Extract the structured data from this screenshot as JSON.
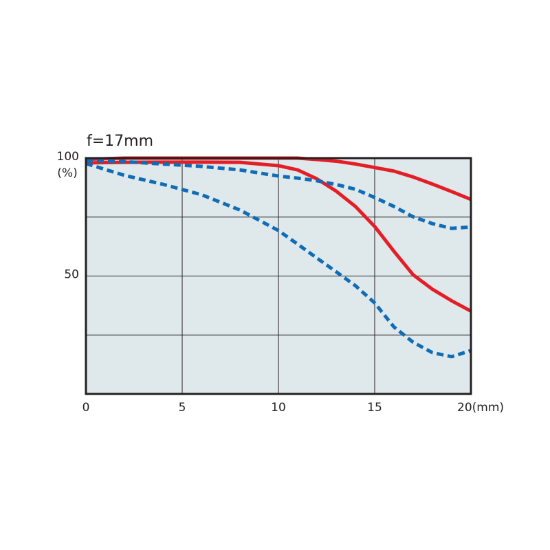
{
  "chart_data": {
    "type": "line",
    "title": "f=17mm",
    "ylabel": "(%)",
    "x": [
      0,
      2,
      4,
      6,
      8,
      10,
      11,
      12,
      13,
      14,
      15,
      16,
      17,
      18,
      19,
      20
    ],
    "series": [
      {
        "color": "#e31e26",
        "dashed": false,
        "values": [
          99.5,
          100,
          100,
          100,
          100,
          100,
          100,
          99.4,
          98.7,
          97.5,
          96,
          94.5,
          92,
          89,
          85.8,
          82.5
        ]
      },
      {
        "color": "#e31e26",
        "dashed": false,
        "values": [
          98,
          98.2,
          98.3,
          98.3,
          98.2,
          96.8,
          95,
          91.2,
          86,
          79.5,
          71,
          60.5,
          50.5,
          44.4,
          39.5,
          35.1
        ]
      },
      {
        "color": "#0f6cb6",
        "dashed": true,
        "values": [
          99,
          98.5,
          97.5,
          96.5,
          95,
          92.4,
          91.5,
          90.4,
          88.8,
          86.8,
          83.3,
          79.5,
          75.1,
          72.2,
          70.2,
          70.8
        ]
      },
      {
        "color": "#0f6cb6",
        "dashed": true,
        "values": [
          97.7,
          92.7,
          88.9,
          84.5,
          78,
          69.3,
          63.5,
          57.6,
          51.8,
          45.9,
          38.6,
          28.4,
          21.9,
          17.5,
          15.8,
          18.4
        ]
      }
    ],
    "xlim": [
      0,
      20
    ],
    "xticks": [
      0,
      5,
      10,
      15,
      {
        "value": 20,
        "label": "20(mm)"
      }
    ],
    "ylim": [
      0,
      100
    ],
    "yticks": [
      50,
      100
    ],
    "ygrid": [
      25,
      50,
      75
    ],
    "xgrid": [
      5,
      10,
      15
    ],
    "plot_background": "#dfe8eb"
  }
}
